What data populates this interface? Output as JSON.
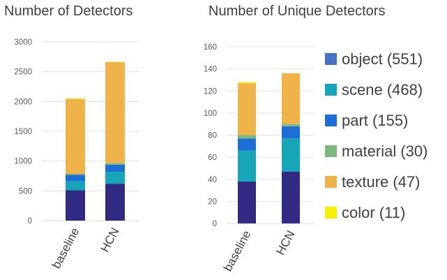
{
  "colors": {
    "object": "#332a84",
    "scene": "#16a6b8",
    "part": "#1b6fd6",
    "material": "#7bb87e",
    "texture": "#f0b34a",
    "color": "#f5f000",
    "grid": "#e0e0e0",
    "axis": "#d9d9d9"
  },
  "legend": [
    {
      "key": "object",
      "label": "object (551)",
      "color": "#4473c4"
    },
    {
      "key": "scene",
      "label": "scene (468)",
      "color": "#16a6b8"
    },
    {
      "key": "part",
      "label": "part (155)",
      "color": "#1b6fd6"
    },
    {
      "key": "material",
      "label": "material (30)",
      "color": "#7bb87e"
    },
    {
      "key": "texture",
      "label": "texture (47)",
      "color": "#f0b34a"
    },
    {
      "key": "color",
      "label": "color (11)",
      "color": "#f5f000"
    }
  ],
  "chart_data": [
    {
      "type": "bar",
      "stacked": true,
      "title": "Number of Detectors",
      "categories": [
        "baseline",
        "HCN"
      ],
      "ylim": [
        0,
        3000
      ],
      "yticks": [
        0,
        500,
        1000,
        1500,
        2000,
        2500,
        3000
      ],
      "grid": true,
      "series": [
        {
          "name": "object",
          "values": [
            510,
            620
          ]
        },
        {
          "name": "scene",
          "values": [
            150,
            200
          ]
        },
        {
          "name": "part",
          "values": [
            110,
            120
          ]
        },
        {
          "name": "material",
          "values": [
            15,
            25
          ]
        },
        {
          "name": "texture",
          "values": [
            1255,
            1695
          ]
        },
        {
          "name": "color",
          "values": [
            10,
            5
          ]
        }
      ]
    },
    {
      "type": "bar",
      "stacked": true,
      "title": "Number of Unique Detectors",
      "categories": [
        "baseline",
        "HCN"
      ],
      "ylim": [
        0,
        160
      ],
      "yticks": [
        0,
        20,
        40,
        60,
        80,
        100,
        120,
        140,
        160
      ],
      "grid": true,
      "series": [
        {
          "name": "object",
          "values": [
            38,
            47
          ]
        },
        {
          "name": "scene",
          "values": [
            28,
            30
          ]
        },
        {
          "name": "part",
          "values": [
            11,
            11
          ]
        },
        {
          "name": "material",
          "values": [
            3,
            2
          ]
        },
        {
          "name": "texture",
          "values": [
            47,
            46
          ]
        },
        {
          "name": "color",
          "values": [
            1,
            0
          ]
        }
      ]
    }
  ]
}
